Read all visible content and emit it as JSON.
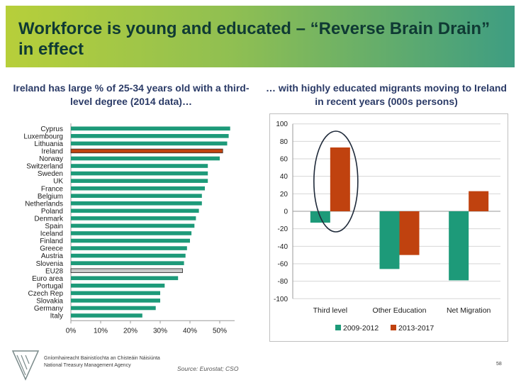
{
  "slide": {
    "title": "Workforce is young and educated – “Reverse Brain Drain” in effect",
    "left_subtitle": "Ireland has large % of 25-34 years old with a third-level degree (2014 data)…",
    "right_subtitle": "… with highly educated migrants moving to Ireland in recent years (000s persons)",
    "agency_line1": "Gníomhaireacht Bainistíochta an Chisteáin Náisiúnta",
    "agency_line2": "National Treasury Management Agency",
    "source": "Source: Eurostat; CSO",
    "page_number": "58"
  },
  "colors": {
    "teal": "#1d9a79",
    "orange": "#c0420f",
    "grey": "#c9c9c9",
    "title_text": "#0f3a34",
    "subtitle_text": "#2b3b67"
  },
  "chart_data": [
    {
      "type": "bar",
      "orientation": "horizontal",
      "categories": [
        "Cyprus",
        "Luxembourg",
        "Lithuania",
        "Ireland",
        "Norway",
        "Switzerland",
        "Sweden",
        "UK",
        "France",
        "Belgium",
        "Netherlands",
        "Poland",
        "Denmark",
        "Spain",
        "Iceland",
        "Finland",
        "Greece",
        "Austria",
        "Slovenia",
        "EU28",
        "Euro area",
        "Portugal",
        "Czech Rep",
        "Slovakia",
        "Germany",
        "Italy"
      ],
      "values": [
        53.5,
        53.0,
        52.5,
        51.0,
        50.0,
        46.0,
        46.0,
        46.0,
        45.0,
        44.0,
        44.0,
        43.0,
        42.0,
        41.5,
        40.5,
        40.0,
        39.0,
        38.5,
        38.0,
        37.5,
        36.0,
        31.5,
        30.0,
        30.0,
        28.5,
        24.0
      ],
      "highlight": {
        "Ireland": "orange",
        "EU28": "grey"
      },
      "xlim": [
        0,
        55
      ],
      "ticks": [
        "0%",
        "10%",
        "20%",
        "30%",
        "40%",
        "50%"
      ],
      "tick_values": [
        0,
        10,
        20,
        30,
        40,
        50
      ],
      "grid": false
    },
    {
      "type": "bar",
      "orientation": "vertical",
      "categories": [
        "Third level",
        "Other Education",
        "Net Migration"
      ],
      "series": [
        {
          "name": "2009-2012",
          "color": "#1d9a79",
          "values": [
            -13,
            -66,
            -79
          ]
        },
        {
          "name": "2013-2017",
          "color": "#c0420f",
          "values": [
            73,
            -50,
            23
          ]
        }
      ],
      "ylim": [
        -100,
        100
      ],
      "ticks": [
        "100",
        "80",
        "60",
        "40",
        "20",
        "0",
        "-20",
        "-40",
        "-60",
        "-80",
        "-100"
      ],
      "tick_values": [
        100,
        80,
        60,
        40,
        20,
        0,
        -20,
        -40,
        -60,
        -80,
        -100
      ],
      "grid": true,
      "legend": "bottom",
      "annotation": "ellipse around Third level bars"
    }
  ]
}
